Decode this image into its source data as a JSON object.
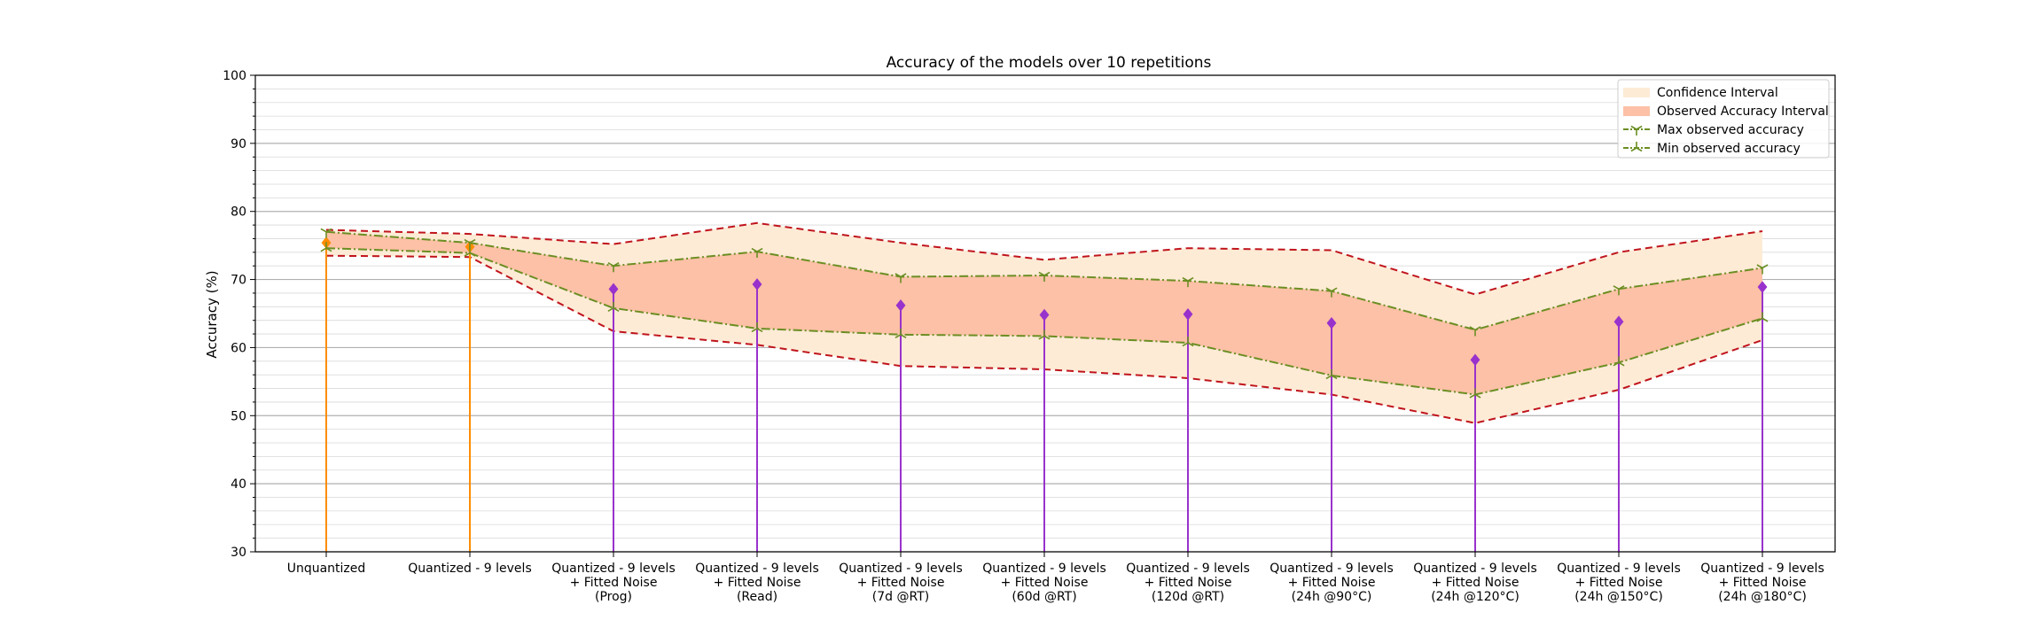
{
  "chart_data": {
    "type": "line",
    "title": "Accuracy of the models over 10 repetitions",
    "xlabel": "",
    "ylabel": "Accuracy (%)",
    "ylim": [
      30,
      100
    ],
    "yticks": [
      30,
      40,
      50,
      60,
      70,
      80,
      90,
      100
    ],
    "grid": "horizontal major and minor",
    "legend_position": "top-right",
    "categories": [
      "Unquantized",
      "Quantized - 9 levels",
      "Quantized - 9 levels\n+ Fitted Noise\n(Prog)",
      "Quantized - 9 levels\n+ Fitted Noise\n(Read)",
      "Quantized - 9 levels\n+ Fitted Noise\n(7d @RT)",
      "Quantized - 9 levels\n+ Fitted Noise\n(60d @RT)",
      "Quantized - 9 levels\n+ Fitted Noise\n(120d @RT)",
      "Quantized - 9 levels\n+ Fitted Noise\n(24h @90°C)",
      "Quantized - 9 levels\n+ Fitted Noise\n(24h @120°C)",
      "Quantized - 9 levels\n+ Fitted Noise\n(24h @150°C)",
      "Quantized - 9 levels\n+ Fitted Noise\n(24h @180°C)"
    ],
    "series": [
      {
        "name": "Confidence Interval",
        "kind": "band",
        "color": "#fdebd6",
        "upper": [
          77.3,
          76.7,
          75.2,
          78.3,
          75.4,
          72.9,
          74.6,
          74.3,
          67.8,
          74.0,
          77.1
        ],
        "lower": [
          73.5,
          73.3,
          62.4,
          60.4,
          57.3,
          56.8,
          55.5,
          53.1,
          48.9,
          53.8,
          61.1
        ],
        "boundary_color": "#c0141c"
      },
      {
        "name": "Observed Accuracy Interval",
        "kind": "band",
        "color": "#fcc1a6"
      },
      {
        "name": "Max observed accuracy",
        "kind": "line",
        "color": "#6b8e23",
        "values": [
          77.0,
          75.4,
          72.0,
          74.1,
          70.4,
          70.6,
          69.8,
          68.3,
          62.6,
          68.6,
          71.7
        ]
      },
      {
        "name": "Min observed accuracy",
        "kind": "line",
        "color": "#6b8e23",
        "values": [
          74.6,
          73.9,
          65.8,
          62.8,
          61.9,
          61.7,
          60.7,
          55.9,
          53.1,
          57.8,
          64.3
        ]
      },
      {
        "name": "",
        "kind": "stem",
        "colors": [
          "#ff8c00",
          "#ff8c00",
          "#9932cc",
          "#9932cc",
          "#9932cc",
          "#9932cc",
          "#9932cc",
          "#9932cc",
          "#9932cc",
          "#9932cc",
          "#9932cc"
        ],
        "values": [
          75.4,
          74.8,
          68.6,
          69.3,
          66.2,
          64.8,
          64.9,
          63.6,
          58.2,
          63.8,
          68.9
        ]
      }
    ]
  }
}
